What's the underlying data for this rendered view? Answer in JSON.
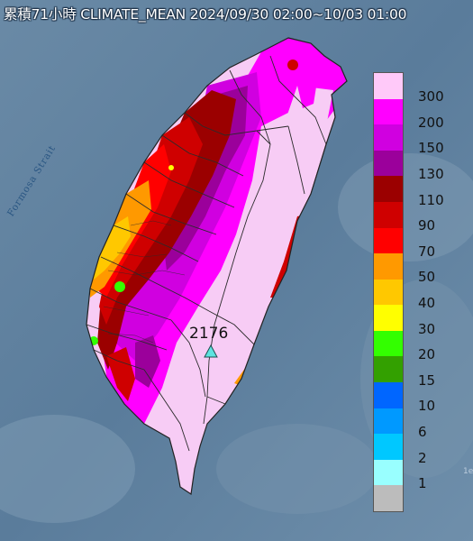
{
  "title": "累積71小時 CLIMATE_MEAN 2024/09/30 02:00~10/03 01:00",
  "strait_label": "Formosa Strait",
  "max_value": "2176",
  "corner_fragment": "1e",
  "colors": {
    "sea": "#5d7f9c",
    "island_base": "#f7ccf5",
    "border": "#2b2b2b",
    "marker": "#5ee3e0"
  },
  "legend": {
    "labels": [
      "300",
      "200",
      "150",
      "130",
      "110",
      "90",
      "70",
      "50",
      "40",
      "30",
      "20",
      "15",
      "10",
      "6",
      "2",
      "1"
    ],
    "colors": [
      "#ffc9f9",
      "#ff00ff",
      "#d000e0",
      "#9b009b",
      "#9b0000",
      "#cf0000",
      "#ff0000",
      "#ff9900",
      "#ffc800",
      "#ffff00",
      "#33ff00",
      "#33a000",
      "#0066ff",
      "#0099ff",
      "#00c8ff",
      "#99ffff",
      "#bcbcbc"
    ]
  }
}
